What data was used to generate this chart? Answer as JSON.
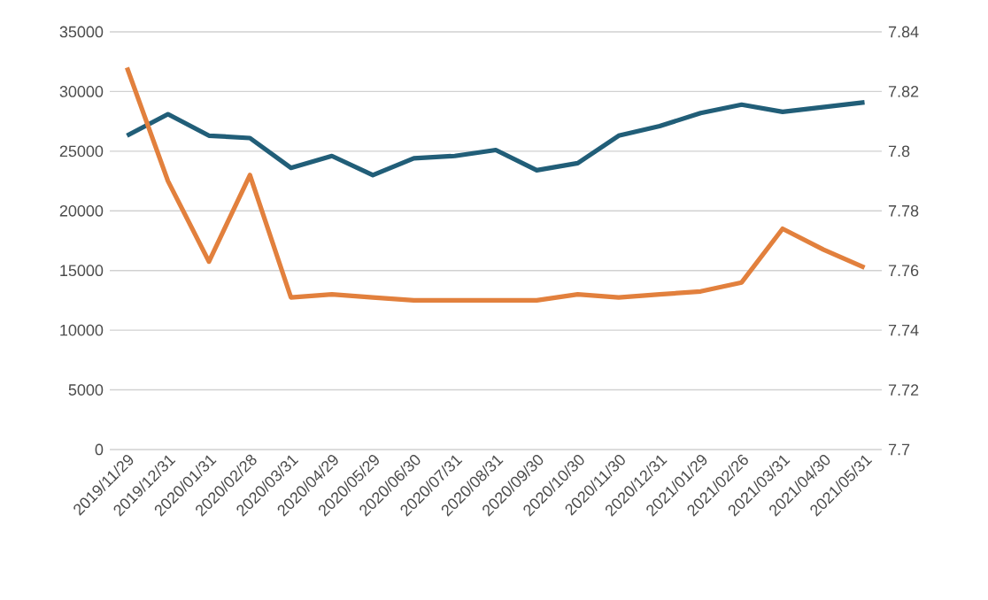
{
  "chart_data": {
    "type": "line",
    "categories": [
      "2019/11/29",
      "2019/12/31",
      "2020/01/31",
      "2020/02/28",
      "2020/03/31",
      "2020/04/29",
      "2020/05/29",
      "2020/06/30",
      "2020/07/31",
      "2020/08/31",
      "2020/09/30",
      "2020/10/30",
      "2020/11/30",
      "2020/12/31",
      "2021/01/29",
      "2021/02/26",
      "2021/03/31",
      "2021/04/30",
      "2021/05/31"
    ],
    "series": [
      {
        "color": "#215e78",
        "values": [
          26300,
          28100,
          26300,
          26100,
          23600,
          24600,
          23000,
          24400,
          24600,
          25100,
          23400,
          24000,
          26300,
          27100,
          28200,
          28900,
          28300,
          28700,
          29100
        ]
      },
      {
        "color": "#e2803d",
        "axis": "y2",
        "values": [
          7.828,
          7.79,
          7.763,
          7.792,
          7.751,
          7.752,
          7.751,
          7.75,
          7.75,
          7.75,
          7.75,
          7.752,
          7.751,
          7.752,
          7.753,
          7.756,
          7.774,
          7.767,
          7.761
        ]
      }
    ],
    "ylim": [
      0,
      35000
    ],
    "yticks": [
      0,
      5000,
      10000,
      15000,
      20000,
      25000,
      30000,
      35000
    ],
    "y2lim": [
      7.7,
      7.84
    ],
    "y2ticks": [
      7.7,
      7.72,
      7.74,
      7.76,
      7.78,
      7.8,
      7.82,
      7.84
    ],
    "grid": "y",
    "marker": "none",
    "line_style": "solid"
  }
}
